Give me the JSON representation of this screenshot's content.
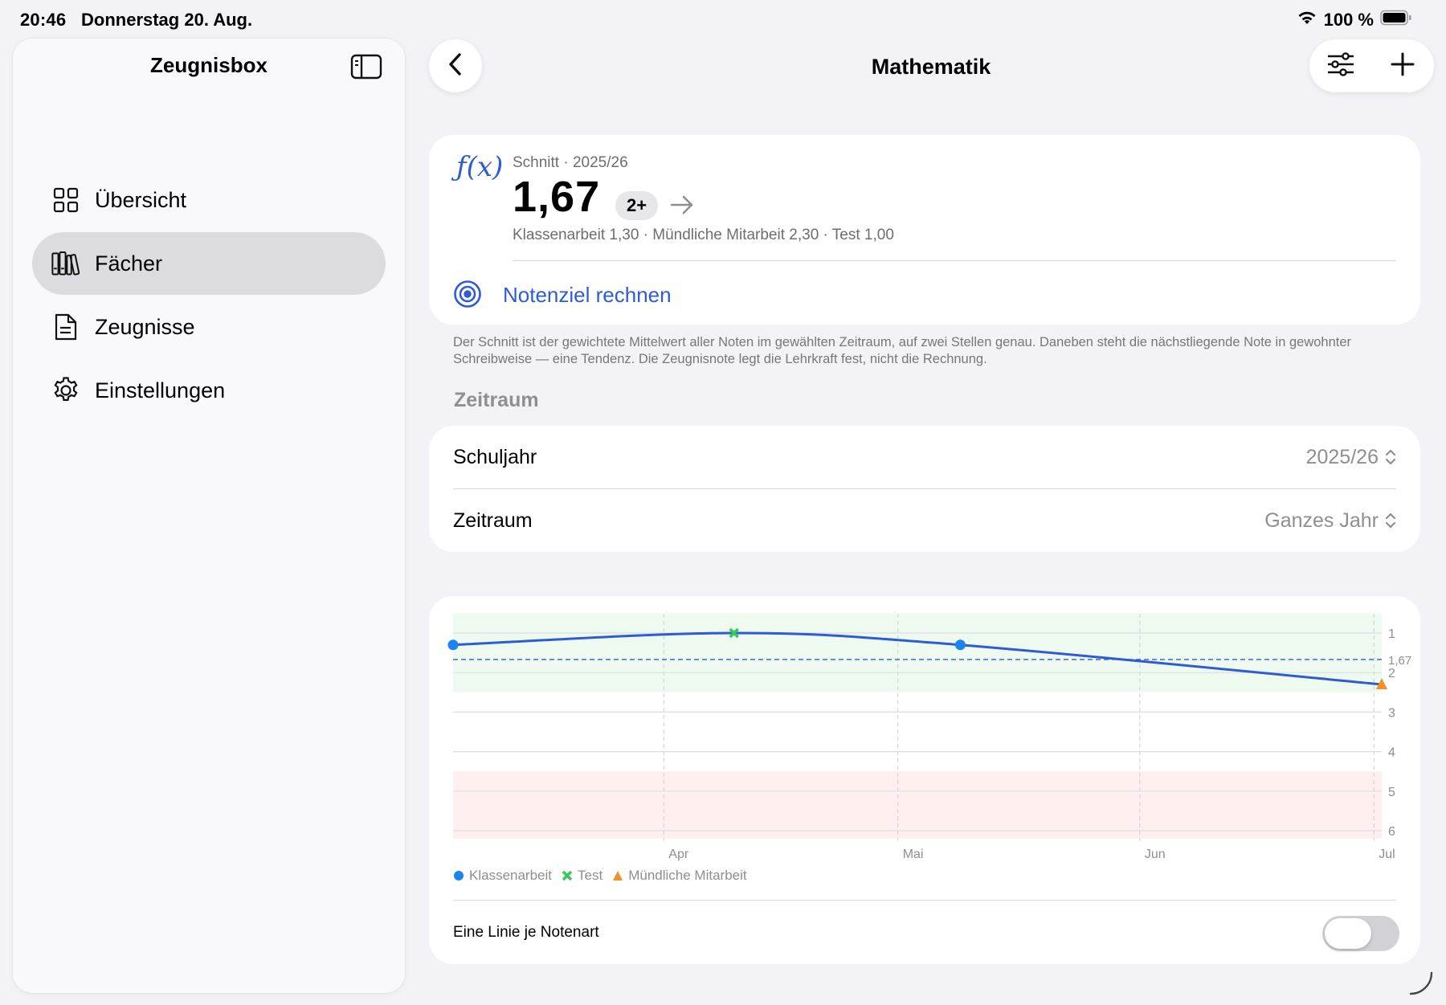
{
  "status": {
    "time": "20:46",
    "date": "Donnerstag 20. Aug.",
    "battery": "100 %"
  },
  "sidebar": {
    "title": "Zeugnisbox",
    "items": [
      {
        "label": "Übersicht",
        "icon": "grid-icon"
      },
      {
        "label": "Fächer",
        "icon": "books-icon",
        "selected": true
      },
      {
        "label": "Zeugnisse",
        "icon": "document-icon"
      },
      {
        "label": "Einstellungen",
        "icon": "gear-icon"
      }
    ]
  },
  "header": {
    "title": "Mathematik"
  },
  "average": {
    "label": "Schnitt · 2025/26",
    "value": "1,67",
    "grade": "2+",
    "breakdown": "Klassenarbeit 1,30 · Mündliche Mitarbeit 2,30 · Test 1,00",
    "target_label": "Notenziel rechnen",
    "footnote": "Der Schnitt ist der gewichtete Mittelwert aller Noten im gewählten Zeitraum, auf zwei Stellen genau. Daneben steht die nächstliegende Note in gewohnter Schreibweise — eine Tendenz. Die Zeugnisnote legt die Lehrkraft fest, nicht die Rechnung."
  },
  "period": {
    "section_title": "Zeitraum",
    "rows": [
      {
        "label": "Schuljahr",
        "value": "2025/26"
      },
      {
        "label": "Zeitraum",
        "value": "Ganzes Jahr"
      }
    ]
  },
  "chart": {
    "toggle_label": "Eine Linie je Notenart",
    "toggle_on": false
  },
  "colors": {
    "accent": "#2f5bd3",
    "klassenarbeit": "#1a84f0",
    "test": "#34c759",
    "muendlich": "#f0912c"
  },
  "chart_data": {
    "type": "line",
    "x_ticks": [
      "Apr",
      "Mai",
      "Jun",
      "Jul"
    ],
    "y_ticks": [
      "1",
      "2",
      "3",
      "4",
      "5",
      "6"
    ],
    "ylim": [
      6,
      0.5
    ],
    "y_inverted": true,
    "average_line": {
      "value": 1.67,
      "label": "1,67"
    },
    "good_band": [
      0.5,
      2.5
    ],
    "poor_band": [
      4.5,
      6.2
    ],
    "trend": [
      {
        "x": "2025-03-05",
        "y": 1.3
      },
      {
        "x": "2025-04-10",
        "y": 1.0
      },
      {
        "x": "2025-05-09",
        "y": 1.3
      },
      {
        "x": "2025-07-02",
        "y": 2.3
      }
    ],
    "series": [
      {
        "name": "Klassenarbeit",
        "marker": "circle",
        "points": [
          {
            "x": "2025-03-05",
            "y": 1.3
          },
          {
            "x": "2025-05-09",
            "y": 1.3
          }
        ]
      },
      {
        "name": "Test",
        "marker": "cross",
        "points": [
          {
            "x": "2025-04-10",
            "y": 1.0
          }
        ]
      },
      {
        "name": "Mündliche Mitarbeit",
        "marker": "triangle",
        "points": [
          {
            "x": "2025-07-02",
            "y": 2.3
          }
        ]
      }
    ],
    "grid": true,
    "legend": "bottom-left"
  }
}
